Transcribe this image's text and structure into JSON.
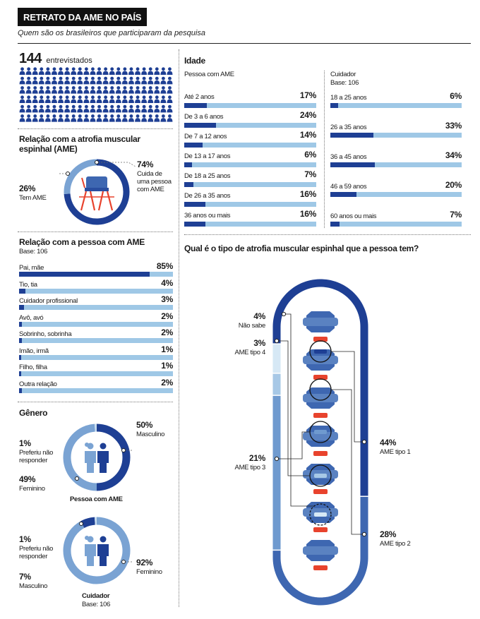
{
  "header": {
    "title": "RETRATO DA AME NO PAÍS",
    "subtitle": "Quem são os brasileiros que participaram da pesquisa"
  },
  "respondents": {
    "count": "144",
    "label": "entrevistados",
    "icon": "person-icon",
    "icons_total": 144
  },
  "relation_ame": {
    "title": "Relação com a atrofia muscular espinhal (AME)",
    "segments": [
      {
        "pct": "74%",
        "value": 74,
        "label": "Cuida de uma pessoa com AME",
        "color": "#1e3f94"
      },
      {
        "pct": "26%",
        "value": 26,
        "label": "Tem AME",
        "color": "#7aa3d3"
      }
    ],
    "center_icon": "wheelchair-icon"
  },
  "relation_person": {
    "title": "Relação com a pessoa com AME",
    "base": "Base: 106",
    "items": [
      {
        "label": "Pai, mãe",
        "pct": "85%",
        "value": 85
      },
      {
        "label": "Tio, tia",
        "pct": "4%",
        "value": 4
      },
      {
        "label": "Cuidador profissional",
        "pct": "3%",
        "value": 3
      },
      {
        "label": "Avô, avó",
        "pct": "2%",
        "value": 2
      },
      {
        "label": "Sobrinho, sobrinha",
        "pct": "2%",
        "value": 2
      },
      {
        "label": "Imão, irmã",
        "pct": "1%",
        "value": 1
      },
      {
        "label": "Filho, filha",
        "pct": "1%",
        "value": 1
      },
      {
        "label": "Outra relação",
        "pct": "2%",
        "value": 2
      }
    ]
  },
  "gender": {
    "title": "Gênero",
    "person": {
      "caption": "Pessoa com AME",
      "segments": [
        {
          "pct": "50%",
          "value": 50,
          "label": "Masculino",
          "color": "#1e3f94"
        },
        {
          "pct": "49%",
          "value": 49,
          "label": "Feminino",
          "color": "#7aa3d3"
        },
        {
          "pct": "1%",
          "value": 1,
          "label": "Preferiu não responder",
          "color": "#c9def0"
        }
      ]
    },
    "caregiver": {
      "caption": "Cuidador",
      "base": "Base: 106",
      "segments": [
        {
          "pct": "92%",
          "value": 92,
          "label": "Feminino",
          "color": "#7aa3d3"
        },
        {
          "pct": "7%",
          "value": 7,
          "label": "Masculino",
          "color": "#1e3f94"
        },
        {
          "pct": "1%",
          "value": 1,
          "label": "Preferiu não responder",
          "color": "#c9def0"
        }
      ]
    },
    "icon": "man-woman-icon"
  },
  "age": {
    "title": "Idade",
    "person": {
      "title": "Pessoa com AME",
      "items": [
        {
          "label": "Até 2 anos",
          "pct": "17%",
          "value": 17
        },
        {
          "label": "De 3 a 6 anos",
          "pct": "24%",
          "value": 24
        },
        {
          "label": "De 7 a 12 anos",
          "pct": "14%",
          "value": 14
        },
        {
          "label": "De 13 a 17 anos",
          "pct": "6%",
          "value": 6
        },
        {
          "label": "De 18 a 25 anos",
          "pct": "7%",
          "value": 7
        },
        {
          "label": "De 26 a 35 anos",
          "pct": "16%",
          "value": 16
        },
        {
          "label": "36 anos ou mais",
          "pct": "16%",
          "value": 16
        }
      ]
    },
    "caregiver": {
      "title": "Cuidador",
      "base": "Base: 106",
      "items": [
        {
          "label": "18 a 25 anos",
          "pct": "6%",
          "value": 6
        },
        {
          "label": "26 a 35 anos",
          "pct": "33%",
          "value": 33
        },
        {
          "label": "36 a 45 anos",
          "pct": "34%",
          "value": 34
        },
        {
          "label": "46 a 59 anos",
          "pct": "20%",
          "value": 20
        },
        {
          "label": "60 anos ou mais",
          "pct": "7%",
          "value": 7
        }
      ]
    }
  },
  "ame_type": {
    "title": "Qual é o tipo de atrofia muscular espinhal que a pessoa tem?",
    "items": [
      {
        "pct": "44%",
        "value": 44,
        "label": "AME tipo 1",
        "color": "#1e3f94"
      },
      {
        "pct": "28%",
        "value": 28,
        "label": "AME tipo 2",
        "color": "#3e67b1"
      },
      {
        "pct": "21%",
        "value": 21,
        "label": "AME tipo 3",
        "color": "#6f9acf"
      },
      {
        "pct": "3%",
        "value": 3,
        "label": "AME tipo 4",
        "color": "#a7c8e6"
      },
      {
        "pct": "4%",
        "value": 4,
        "label": "Não sabe",
        "color": "#d6e8f5"
      }
    ],
    "center_icon": "spine-icon"
  },
  "colors": {
    "dark": "#1e3f94",
    "light": "#9fc8e6",
    "accent": "#e8432d"
  },
  "chart_data": [
    {
      "type": "pie",
      "title": "Relação com a atrofia muscular espinhal (AME)",
      "categories": [
        "Cuida de uma pessoa com AME",
        "Tem AME"
      ],
      "values": [
        74,
        26
      ]
    },
    {
      "type": "bar",
      "title": "Relação com a pessoa com AME",
      "categories": [
        "Pai, mãe",
        "Tio, tia",
        "Cuidador profissional",
        "Avô, avó",
        "Sobrinho, sobrinha",
        "Imão, irmã",
        "Filho, filha",
        "Outra relação"
      ],
      "values": [
        85,
        4,
        3,
        2,
        2,
        1,
        1,
        2
      ]
    },
    {
      "type": "pie",
      "title": "Pessoa com AME",
      "categories": [
        "Masculino",
        "Feminino",
        "Preferiu não responder"
      ],
      "values": [
        50,
        49,
        1
      ]
    },
    {
      "type": "pie",
      "title": "Cuidador",
      "categories": [
        "Feminino",
        "Masculino",
        "Preferiu não responder"
      ],
      "values": [
        92,
        7,
        1
      ]
    },
    {
      "type": "bar",
      "title": "Pessoa com AME",
      "categories": [
        "Até 2 anos",
        "De 3 a 6 anos",
        "De 7 a 12 anos",
        "De 13 a 17 anos",
        "De 18 a 25 anos",
        "De 26 a 35 anos",
        "36 anos ou mais"
      ],
      "values": [
        17,
        24,
        14,
        6,
        7,
        16,
        16
      ]
    },
    {
      "type": "bar",
      "title": "Cuidador",
      "categories": [
        "18 a 25 anos",
        "26 a 35 anos",
        "36 a 45 anos",
        "46 a 59 anos",
        "60 anos ou mais"
      ],
      "values": [
        6,
        33,
        34,
        20,
        7
      ]
    },
    {
      "type": "pie",
      "title": "Qual é o tipo de atrofia muscular espinhal que a pessoa tem?",
      "categories": [
        "AME tipo 1",
        "AME tipo 2",
        "AME tipo 3",
        "AME tipo 4",
        "Não sabe"
      ],
      "values": [
        44,
        28,
        21,
        3,
        4
      ]
    }
  ]
}
